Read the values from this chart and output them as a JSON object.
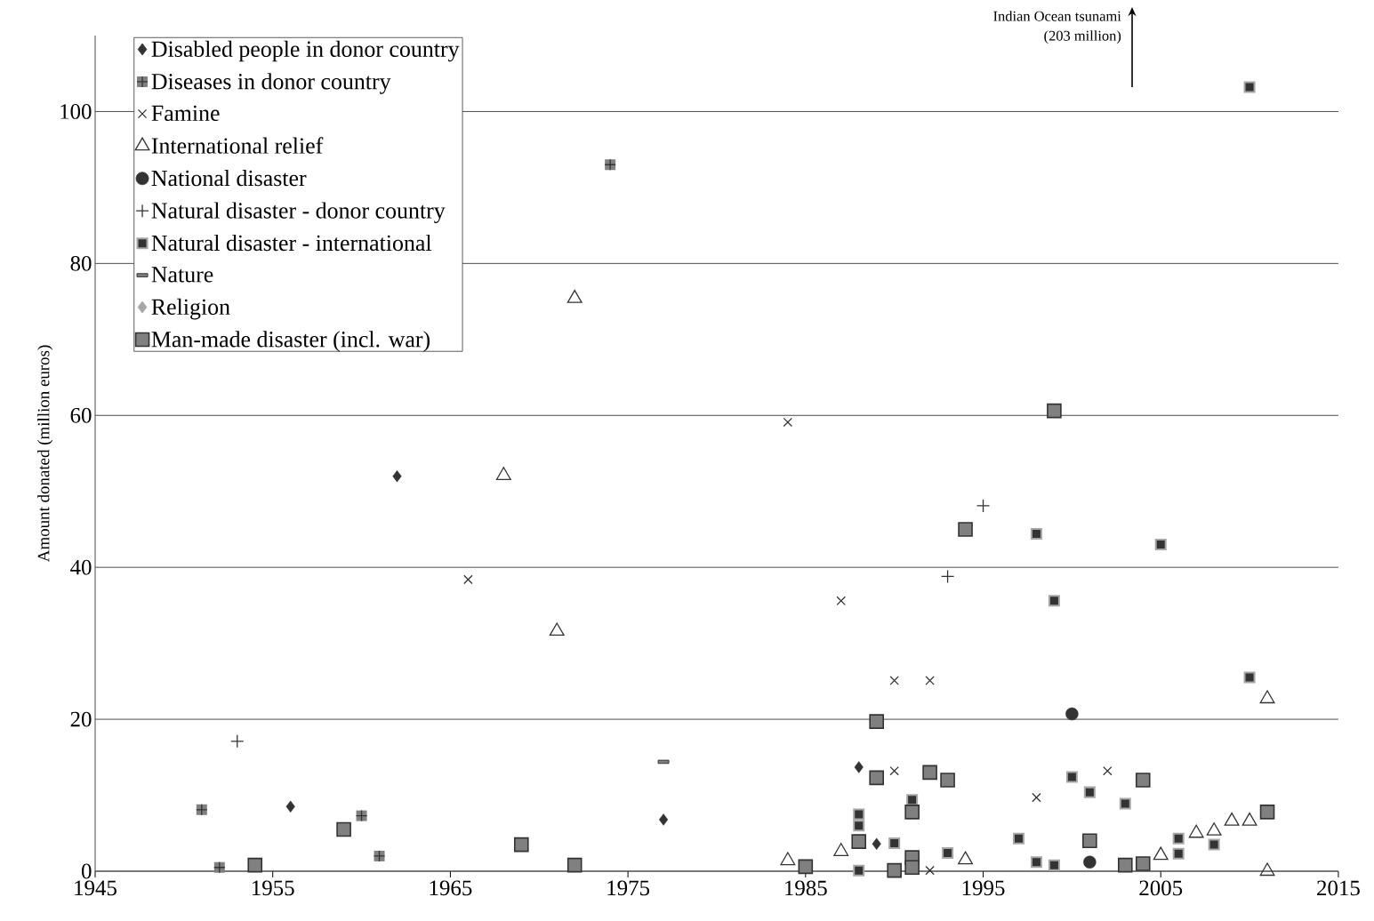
{
  "chart_data": {
    "type": "scatter",
    "ylabel": "Amount donated (million euros)",
    "xlim": [
      1945,
      2015
    ],
    "xticks": [
      1945,
      1955,
      1965,
      1975,
      1985,
      1995,
      2005,
      2015
    ],
    "ylim": [
      0,
      110
    ],
    "yticks": [
      0,
      20,
      40,
      60,
      80,
      100
    ],
    "grid": "y",
    "legend": "top left",
    "annotations": [
      "Indian Ocean tsunami",
      "(203 million)"
    ],
    "series": [
      {
        "name": "Disabled people in donor country",
        "color": "#333333",
        "marker": "diamond",
        "x": [
          1956,
          1962,
          1977,
          1988,
          1989
        ],
        "values": [
          8.5,
          52,
          6.8,
          13.7,
          3.6
        ]
      },
      {
        "name": "Diseases in donor country",
        "color": "#808080",
        "marker": "square-plus",
        "x": [
          1951,
          1952,
          1960,
          1961,
          1974
        ],
        "values": [
          8.1,
          0.5,
          7.3,
          2.0,
          93
        ]
      },
      {
        "name": "Famine",
        "color": "#333333",
        "marker": "cross",
        "x": [
          1966,
          1984,
          1987,
          1990,
          1992,
          1990,
          1992,
          1998,
          2002
        ],
        "values": [
          38.4,
          59.1,
          35.6,
          25.1,
          25.1,
          13.2,
          0.1,
          9.7,
          13.2
        ]
      },
      {
        "name": "International relief",
        "color": "#333333",
        "marker": "triangle",
        "x": [
          1968,
          1971,
          1972,
          1984,
          1987,
          1994,
          2005,
          2007,
          2008,
          2009,
          2010,
          2011,
          2011
        ],
        "values": [
          52.1,
          31.6,
          75.4,
          1.4,
          2.6,
          1.5,
          2.1,
          5.0,
          5.3,
          6.6,
          6.6,
          22.7,
          0
        ]
      },
      {
        "name": "National disaster",
        "color": "#333333",
        "marker": "circle",
        "x": [
          2000,
          2001
        ],
        "values": [
          20.7,
          1.2
        ]
      },
      {
        "name": "Natural disaster - donor country",
        "color": "#333333",
        "marker": "plus",
        "x": [
          1953,
          1993,
          1995
        ],
        "values": [
          17.1,
          38.8,
          48.1
        ]
      },
      {
        "name": "Natural disaster - international",
        "color": "#333333",
        "x": [
          1988,
          1988,
          1988,
          1990,
          1991,
          1993,
          1997,
          1998,
          1998,
          1999,
          1999,
          2000,
          2001,
          2003,
          2005,
          2006,
          2006,
          2008,
          2010,
          2010
        ],
        "values": [
          7.5,
          6.0,
          0.1,
          3.7,
          9.4,
          2.4,
          4.3,
          1.2,
          44.4,
          0.8,
          35.6,
          12.4,
          10.4,
          8.9,
          43,
          4.3,
          2.3,
          3.5,
          25.5,
          103.2
        ]
      },
      {
        "name": "Nature",
        "color": "#808080",
        "x": [
          1977
        ],
        "values": [
          14.4
        ]
      },
      {
        "name": "Religion",
        "color": "#a6a6a6",
        "marker": "diamond"
      },
      {
        "name": "Man-made disaster (incl. war)",
        "color": "#808080",
        "marker": "square",
        "x": [
          1954,
          1959,
          1969,
          1972,
          1985,
          1988,
          1989,
          1989,
          1990,
          1991,
          1991,
          1991,
          1992,
          1993,
          1994,
          1999,
          2001,
          2003,
          2004,
          2004,
          2011
        ],
        "values": [
          0.8,
          5.5,
          3.5,
          0.8,
          0.6,
          3.9,
          19.7,
          12.3,
          0.1,
          7.8,
          1.8,
          0.5,
          13.0,
          12.0,
          45,
          60.6,
          4.0,
          0.8,
          1.0,
          12.0,
          7.8
        ]
      }
    ]
  }
}
